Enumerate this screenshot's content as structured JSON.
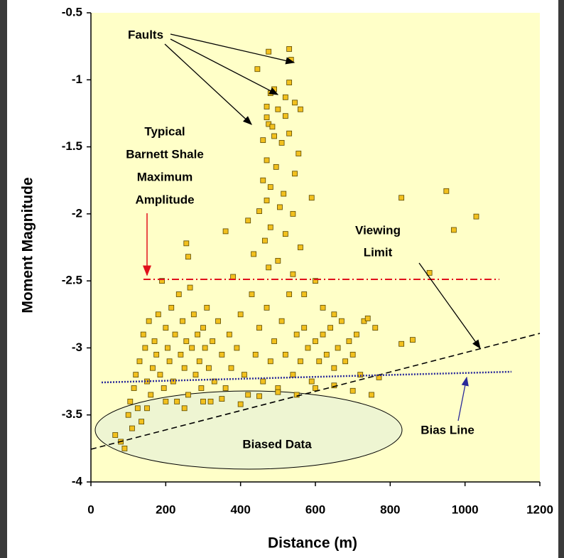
{
  "chart_data": {
    "type": "scatter",
    "x_label": "Distance (m)",
    "y_label": "Moment Magnitude",
    "xlim": [
      0,
      1200
    ],
    "xticks": [
      0,
      200,
      400,
      600,
      800,
      1000,
      1200
    ],
    "ylim": [
      -4,
      -0.5
    ],
    "yticks": [
      -4,
      -3.5,
      -3,
      -2.5,
      -2,
      -1.5,
      -1,
      -0.5
    ],
    "color": "#f2c01e",
    "x": [
      530,
      475,
      535,
      445,
      530,
      490,
      480,
      520,
      545,
      470,
      500,
      560,
      470,
      475,
      485,
      520,
      490,
      460,
      510,
      530,
      555,
      470,
      495,
      545,
      460,
      480,
      515,
      590,
      470,
      505,
      450,
      540,
      420,
      480,
      520,
      465,
      560,
      435,
      500,
      475,
      540,
      600,
      360,
      255,
      260,
      570,
      620,
      650,
      65,
      80,
      90,
      100,
      105,
      110,
      115,
      120,
      125,
      130,
      135,
      140,
      145,
      150,
      155,
      160,
      165,
      170,
      175,
      180,
      185,
      190,
      195,
      200,
      205,
      210,
      215,
      220,
      225,
      230,
      235,
      240,
      245,
      250,
      255,
      260,
      265,
      270,
      275,
      280,
      285,
      290,
      295,
      300,
      305,
      310,
      315,
      320,
      325,
      330,
      340,
      350,
      360,
      370,
      375,
      380,
      390,
      400,
      410,
      420,
      430,
      440,
      450,
      460,
      470,
      480,
      490,
      500,
      510,
      520,
      530,
      540,
      550,
      560,
      570,
      580,
      590,
      600,
      610,
      620,
      630,
      640,
      650,
      660,
      670,
      680,
      690,
      700,
      710,
      720,
      730,
      740,
      750,
      150,
      200,
      250,
      300,
      350,
      400,
      450,
      500,
      550,
      600,
      650,
      700,
      830,
      950,
      970,
      1030,
      905,
      830,
      860,
      760,
      770
    ],
    "values": [
      -0.77,
      -0.79,
      -0.85,
      -0.92,
      -1.02,
      -1.07,
      -1.1,
      -1.13,
      -1.17,
      -1.2,
      -1.22,
      -1.22,
      -1.28,
      -1.33,
      -1.35,
      -1.27,
      -1.42,
      -1.45,
      -1.47,
      -1.4,
      -1.55,
      -1.6,
      -1.65,
      -1.7,
      -1.75,
      -1.8,
      -1.85,
      -1.88,
      -1.9,
      -1.95,
      -1.98,
      -2.0,
      -2.05,
      -2.1,
      -2.15,
      -2.2,
      -2.25,
      -2.3,
      -2.35,
      -2.4,
      -2.45,
      -2.5,
      -2.13,
      -2.22,
      -2.32,
      -2.6,
      -2.7,
      -2.75,
      -3.65,
      -3.7,
      -3.75,
      -3.5,
      -3.4,
      -3.6,
      -3.3,
      -3.2,
      -3.45,
      -3.1,
      -3.55,
      -2.9,
      -3.0,
      -3.25,
      -2.8,
      -3.35,
      -3.15,
      -2.95,
      -3.05,
      -2.75,
      -3.2,
      -2.5,
      -3.3,
      -2.85,
      -3.0,
      -3.1,
      -2.7,
      -3.25,
      -2.9,
      -3.4,
      -2.6,
      -3.05,
      -2.8,
      -3.15,
      -2.95,
      -3.35,
      -2.55,
      -3.0,
      -2.75,
      -3.2,
      -2.9,
      -3.1,
      -3.3,
      -2.85,
      -3.0,
      -2.7,
      -3.15,
      -3.4,
      -2.95,
      -3.25,
      -2.8,
      -3.05,
      -3.3,
      -2.9,
      -3.15,
      -2.47,
      -3.0,
      -2.75,
      -3.2,
      -3.35,
      -2.6,
      -3.05,
      -2.85,
      -3.25,
      -2.7,
      -3.1,
      -2.95,
      -3.3,
      -2.8,
      -3.05,
      -2.6,
      -3.2,
      -2.9,
      -3.1,
      -2.85,
      -3.0,
      -3.25,
      -2.95,
      -3.1,
      -2.9,
      -3.05,
      -2.85,
      -3.15,
      -3.0,
      -2.8,
      -3.1,
      -2.95,
      -3.05,
      -2.9,
      -3.2,
      -2.8,
      -2.78,
      -3.35,
      -3.45,
      -3.4,
      -3.45,
      -3.4,
      -3.38,
      -3.42,
      -3.36,
      -3.33,
      -3.35,
      -3.3,
      -3.28,
      -3.32,
      -1.88,
      -1.83,
      -2.12,
      -2.02,
      -2.44,
      -2.97,
      -2.94,
      -2.85,
      -3.22
    ],
    "annotations": {
      "faults": "Faults",
      "max_amplitude": [
        "Typical",
        "Barnett Shale",
        "Maximum",
        "Amplitude"
      ],
      "viewing_limit": [
        "Viewing",
        "Limit"
      ],
      "bias_line": "Bias Line",
      "biased_data": "Biased Data"
    }
  }
}
